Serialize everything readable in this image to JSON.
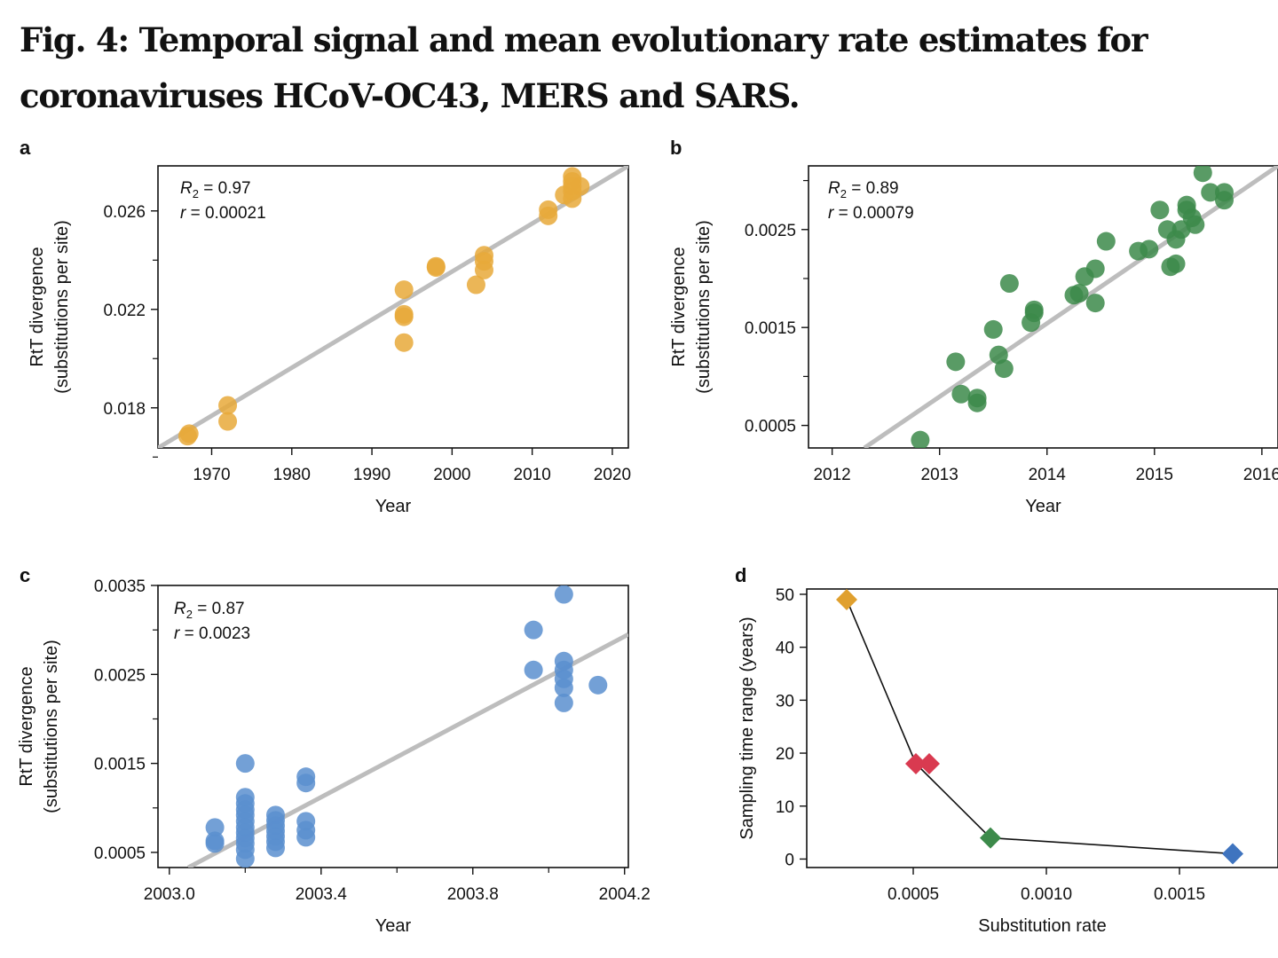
{
  "figure": {
    "title": "Fig. 4: Temporal signal and mean evolutionary rate estimates for coronaviruses HCoV-OC43, MERS and SARS."
  },
  "chart_data": [
    {
      "id": "a",
      "type": "scatter",
      "panel_label": "a",
      "color": "#E8A93A",
      "xlabel": "Year",
      "ylabel": [
        "RtT divergence",
        "(substitutions per site)"
      ],
      "xlim": [
        1963.3,
        2022
      ],
      "ylim": [
        0.01637,
        0.02783
      ],
      "xticks": [
        1970,
        1980,
        1990,
        2000,
        2010,
        2020
      ],
      "xtick_labels": [
        "1970",
        "1980",
        "1990",
        "2000",
        "2010",
        "2020"
      ],
      "xminor": [],
      "yticks": [
        0.018,
        0.022,
        0.026
      ],
      "ytick_labels": [
        "0.018",
        "0.022",
        "0.026"
      ],
      "yminor": [
        0.016,
        0.02,
        0.024
      ],
      "stats": {
        "r2_symbol": "R",
        "r2_sub": "2",
        "r2_value": " = 0.97",
        "r_symbol": "r",
        "r_value": " = 0.00021"
      },
      "regression": {
        "x": [
          1963.3,
          2022
        ],
        "y": [
          0.01637,
          0.02783
        ]
      },
      "points": [
        {
          "x": 1967,
          "y": 0.01685
        },
        {
          "x": 1967.2,
          "y": 0.01695
        },
        {
          "x": 1972,
          "y": 0.0181
        },
        {
          "x": 1972,
          "y": 0.01745
        },
        {
          "x": 1994,
          "y": 0.0228
        },
        {
          "x": 1994,
          "y": 0.0218
        },
        {
          "x": 1994,
          "y": 0.0217
        },
        {
          "x": 1994,
          "y": 0.02065
        },
        {
          "x": 1998,
          "y": 0.02375
        },
        {
          "x": 1998,
          "y": 0.0237
        },
        {
          "x": 2003,
          "y": 0.023
        },
        {
          "x": 2004,
          "y": 0.0242
        },
        {
          "x": 2004,
          "y": 0.02395
        },
        {
          "x": 2004,
          "y": 0.0236
        },
        {
          "x": 2012,
          "y": 0.02605
        },
        {
          "x": 2012,
          "y": 0.0258
        },
        {
          "x": 2014,
          "y": 0.02665
        },
        {
          "x": 2015,
          "y": 0.0274
        },
        {
          "x": 2015,
          "y": 0.0272
        },
        {
          "x": 2015,
          "y": 0.027
        },
        {
          "x": 2015,
          "y": 0.0268
        },
        {
          "x": 2015,
          "y": 0.0265
        },
        {
          "x": 2016,
          "y": 0.027
        }
      ]
    },
    {
      "id": "b",
      "type": "scatter",
      "panel_label": "b",
      "color": "#3C8A4A",
      "xlabel": "Year",
      "ylabel": [
        "RtT divergence",
        "(substitutions per site)"
      ],
      "xlim": [
        2011.78,
        2016.15
      ],
      "ylim": [
        0.00027,
        0.00315
      ],
      "xticks": [
        2012,
        2013,
        2014,
        2015,
        2016
      ],
      "xtick_labels": [
        "2012",
        "2013",
        "2014",
        "2015",
        "2016"
      ],
      "xminor": [],
      "yticks": [
        0.0005,
        0.0015,
        0.0025
      ],
      "ytick_labels": [
        "0.0005",
        "0.0015",
        "0.0025"
      ],
      "yminor": [
        0.001,
        0.002,
        0.003
      ],
      "stats": {
        "r2_symbol": "R",
        "r2_sub": "2",
        "r2_value": " = 0.89",
        "r_symbol": "r",
        "r_value": " = 0.00079"
      },
      "regression": {
        "x": [
          2012.3,
          2016.15
        ],
        "y": [
          0.00027,
          0.00315
        ]
      },
      "points": [
        {
          "x": 2012.82,
          "y": 0.00035
        },
        {
          "x": 2013.15,
          "y": 0.00115
        },
        {
          "x": 2013.2,
          "y": 0.00082
        },
        {
          "x": 2013.35,
          "y": 0.00078
        },
        {
          "x": 2013.35,
          "y": 0.00073
        },
        {
          "x": 2013.5,
          "y": 0.00148
        },
        {
          "x": 2013.55,
          "y": 0.00122
        },
        {
          "x": 2013.6,
          "y": 0.00108
        },
        {
          "x": 2013.65,
          "y": 0.00195
        },
        {
          "x": 2013.85,
          "y": 0.00155
        },
        {
          "x": 2013.88,
          "y": 0.00168
        },
        {
          "x": 2013.88,
          "y": 0.00165
        },
        {
          "x": 2014.25,
          "y": 0.00183
        },
        {
          "x": 2014.3,
          "y": 0.00185
        },
        {
          "x": 2014.35,
          "y": 0.00202
        },
        {
          "x": 2014.45,
          "y": 0.0021
        },
        {
          "x": 2014.45,
          "y": 0.00175
        },
        {
          "x": 2014.55,
          "y": 0.00238
        },
        {
          "x": 2014.85,
          "y": 0.00228
        },
        {
          "x": 2014.95,
          "y": 0.0023
        },
        {
          "x": 2015.05,
          "y": 0.0027
        },
        {
          "x": 2015.12,
          "y": 0.0025
        },
        {
          "x": 2015.15,
          "y": 0.00212
        },
        {
          "x": 2015.2,
          "y": 0.00215
        },
        {
          "x": 2015.2,
          "y": 0.0024
        },
        {
          "x": 2015.25,
          "y": 0.0025
        },
        {
          "x": 2015.3,
          "y": 0.00275
        },
        {
          "x": 2015.3,
          "y": 0.0027
        },
        {
          "x": 2015.35,
          "y": 0.00262
        },
        {
          "x": 2015.38,
          "y": 0.00255
        },
        {
          "x": 2015.45,
          "y": 0.00308
        },
        {
          "x": 2015.52,
          "y": 0.00288
        },
        {
          "x": 2015.65,
          "y": 0.00288
        },
        {
          "x": 2015.65,
          "y": 0.0028
        }
      ]
    },
    {
      "id": "c",
      "type": "scatter",
      "panel_label": "c",
      "color": "#5B8FCF",
      "xlabel": "Year",
      "ylabel": [
        "RtT divergence",
        "(substitutions per site)"
      ],
      "xlim": [
        2002.97,
        2004.21
      ],
      "ylim": [
        0.00033,
        0.0035
      ],
      "xticks": [
        2003.0,
        2003.4,
        2003.8,
        2004.2
      ],
      "xtick_labels": [
        "2003.0",
        "2003.4",
        "2003.8",
        "2004.2"
      ],
      "xminor": [
        2003.2,
        2003.6,
        2004.0
      ],
      "yticks": [
        0.0005,
        0.0015,
        0.0025,
        0.0035
      ],
      "ytick_labels": [
        "0.0005",
        "0.0015",
        "0.0025",
        "0.0035"
      ],
      "yminor": [
        0.001,
        0.002,
        0.003
      ],
      "stats": {
        "r2_symbol": "R",
        "r2_sub": "2",
        "r2_value": " = 0.87",
        "r_symbol": "r",
        "r_value": " = 0.0023"
      },
      "regression": {
        "x": [
          2003.05,
          2004.21
        ],
        "y": [
          0.00033,
          0.00295
        ]
      },
      "points": [
        {
          "x": 2003.12,
          "y": 0.00078
        },
        {
          "x": 2003.12,
          "y": 0.00063
        },
        {
          "x": 2003.12,
          "y": 0.0006
        },
        {
          "x": 2003.2,
          "y": 0.0015
        },
        {
          "x": 2003.2,
          "y": 0.00112
        },
        {
          "x": 2003.2,
          "y": 0.00105
        },
        {
          "x": 2003.2,
          "y": 0.00098
        },
        {
          "x": 2003.2,
          "y": 0.00092
        },
        {
          "x": 2003.2,
          "y": 0.00085
        },
        {
          "x": 2003.2,
          "y": 0.00078
        },
        {
          "x": 2003.2,
          "y": 0.00072
        },
        {
          "x": 2003.2,
          "y": 0.00066
        },
        {
          "x": 2003.2,
          "y": 0.0006
        },
        {
          "x": 2003.2,
          "y": 0.00053
        },
        {
          "x": 2003.2,
          "y": 0.00043
        },
        {
          "x": 2003.28,
          "y": 0.00092
        },
        {
          "x": 2003.28,
          "y": 0.00086
        },
        {
          "x": 2003.28,
          "y": 0.0008
        },
        {
          "x": 2003.28,
          "y": 0.00074
        },
        {
          "x": 2003.28,
          "y": 0.00068
        },
        {
          "x": 2003.28,
          "y": 0.00062
        },
        {
          "x": 2003.28,
          "y": 0.00055
        },
        {
          "x": 2003.36,
          "y": 0.00135
        },
        {
          "x": 2003.36,
          "y": 0.00128
        },
        {
          "x": 2003.36,
          "y": 0.00085
        },
        {
          "x": 2003.36,
          "y": 0.00075
        },
        {
          "x": 2003.36,
          "y": 0.00067
        },
        {
          "x": 2003.96,
          "y": 0.003
        },
        {
          "x": 2003.96,
          "y": 0.00255
        },
        {
          "x": 2004.04,
          "y": 0.0034
        },
        {
          "x": 2004.04,
          "y": 0.00265
        },
        {
          "x": 2004.04,
          "y": 0.00255
        },
        {
          "x": 2004.04,
          "y": 0.00245
        },
        {
          "x": 2004.04,
          "y": 0.00235
        },
        {
          "x": 2004.04,
          "y": 0.00218
        },
        {
          "x": 2004.13,
          "y": 0.00238
        }
      ]
    },
    {
      "id": "d",
      "type": "line",
      "panel_label": "d",
      "xlabel": "Substitution rate",
      "ylabel": [
        "Sampling time range (years)"
      ],
      "xlim": [
        0.0001,
        0.00187
      ],
      "ylim": [
        -1.6,
        51
      ],
      "xticks": [
        0.0005,
        0.001,
        0.0015
      ],
      "xtick_labels": [
        "0.0005",
        "0.0010",
        "0.0015"
      ],
      "xminor": [],
      "yticks": [
        0,
        10,
        20,
        30,
        40,
        50
      ],
      "ytick_labels": [
        "0",
        "10",
        "20",
        "30",
        "40",
        "50"
      ],
      "yminor": [],
      "line": {
        "x": [
          0.00025,
          0.00051,
          0.00079,
          0.0017
        ],
        "y": [
          49,
          18,
          4,
          1
        ]
      },
      "markers": [
        {
          "x": 0.00025,
          "y": 49,
          "color": "#E0A02E"
        },
        {
          "x": 0.00051,
          "y": 18,
          "color": "#D93A50"
        },
        {
          "x": 0.00056,
          "y": 18,
          "color": "#D93A50"
        },
        {
          "x": 0.00079,
          "y": 4,
          "color": "#3C8A4A"
        },
        {
          "x": 0.0017,
          "y": 1,
          "color": "#3F74BF"
        }
      ]
    }
  ]
}
